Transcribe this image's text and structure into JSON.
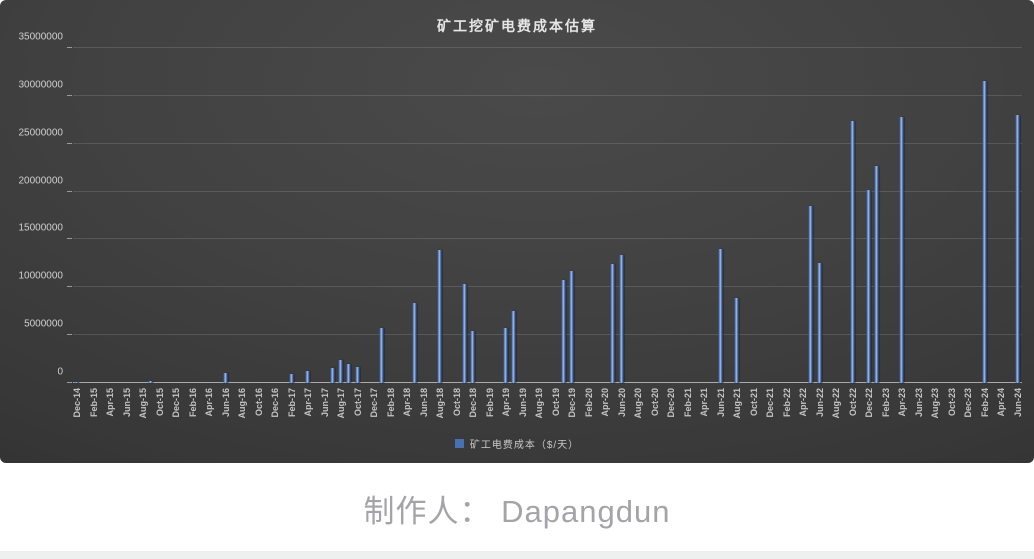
{
  "chart": {
    "title": "矿工挖矿电费成本估算",
    "legend_label": "矿工电费成本（$/天）",
    "accent_color": "#4a70b4",
    "panel_background": "#3d3d3d"
  },
  "footer": {
    "credit": "制作人： Dapangdun"
  },
  "chart_data": {
    "type": "bar",
    "title": "矿工挖矿电费成本估算",
    "legend": [
      "矿工电费成本（$/天）"
    ],
    "legend_position": "bottom",
    "grid": true,
    "ylim": [
      0,
      35000000
    ],
    "y_ticks": [
      0,
      5000000,
      10000000,
      15000000,
      20000000,
      25000000,
      30000000,
      35000000
    ],
    "y_tick_labels": [
      "0",
      "5000000",
      "10000000",
      "15000000",
      "20000000",
      "25000000",
      "30000000",
      "35000000"
    ],
    "x_tick_labels": [
      "Dec-14",
      "Feb-15",
      "Apr-15",
      "Jun-15",
      "Aug-15",
      "Oct-15",
      "Dec-15",
      "Feb-16",
      "Apr-16",
      "Jun-16",
      "Aug-16",
      "Oct-16",
      "Dec-16",
      "Feb-17",
      "Apr-17",
      "Jun-17",
      "Aug-17",
      "Oct-17",
      "Dec-17",
      "Feb-18",
      "Apr-18",
      "Jun-18",
      "Aug-18",
      "Oct-18",
      "Dec-18",
      "Feb-19",
      "Apr-19",
      "Jun-19",
      "Aug-19",
      "Oct-19",
      "Dec-19",
      "Feb-20",
      "Apr-20",
      "Jun-20",
      "Aug-20",
      "Oct-20",
      "Dec-20",
      "Feb-21",
      "Apr-21",
      "Jun-21",
      "Aug-21",
      "Oct-21",
      "Dec-21",
      "Feb-22",
      "Apr-22",
      "Jun-22",
      "Aug-22",
      "Oct-22",
      "Dec-22",
      "Feb-23",
      "Apr-23",
      "Jun-23",
      "Aug-23",
      "Oct-23",
      "Dec-23",
      "Feb-24",
      "Apr-24",
      "Jun-24"
    ],
    "x": [
      "Dec-14",
      "Jan-15",
      "Feb-15",
      "Mar-15",
      "Apr-15",
      "May-15",
      "Jun-15",
      "Jul-15",
      "Aug-15",
      "Sep-15",
      "Oct-15",
      "Nov-15",
      "Dec-15",
      "Jan-16",
      "Feb-16",
      "Mar-16",
      "Apr-16",
      "May-16",
      "Jun-16",
      "Jul-16",
      "Aug-16",
      "Sep-16",
      "Oct-16",
      "Nov-16",
      "Dec-16",
      "Jan-17",
      "Feb-17",
      "Mar-17",
      "Apr-17",
      "May-17",
      "Jun-17",
      "Jul-17",
      "Aug-17",
      "Sep-17",
      "Oct-17",
      "Nov-17",
      "Dec-17",
      "Jan-18",
      "Feb-18",
      "Mar-18",
      "Apr-18",
      "May-18",
      "Jun-18",
      "Jul-18",
      "Aug-18",
      "Sep-18",
      "Oct-18",
      "Nov-18",
      "Dec-18",
      "Jan-19",
      "Feb-19",
      "Mar-19",
      "Apr-19",
      "May-19",
      "Jun-19",
      "Jul-19",
      "Aug-19",
      "Sep-19",
      "Oct-19",
      "Nov-19",
      "Dec-19",
      "Jan-20",
      "Feb-20",
      "Mar-20",
      "Apr-20",
      "May-20",
      "Jun-20",
      "Jul-20",
      "Aug-20",
      "Sep-20",
      "Oct-20",
      "Nov-20",
      "Dec-20",
      "Jan-21",
      "Feb-21",
      "Mar-21",
      "Apr-21",
      "May-21",
      "Jun-21",
      "Jul-21",
      "Aug-21",
      "Sep-21",
      "Oct-21",
      "Nov-21",
      "Dec-21",
      "Jan-22",
      "Feb-22",
      "Mar-22",
      "Apr-22",
      "May-22",
      "Jun-22",
      "Jul-22",
      "Aug-22",
      "Sep-22",
      "Oct-22",
      "Nov-22",
      "Dec-22",
      "Jan-23",
      "Feb-23",
      "Mar-23",
      "Apr-23",
      "May-23",
      "Jun-23",
      "Jul-23",
      "Aug-23",
      "Sep-23",
      "Oct-23",
      "Nov-23",
      "Dec-23",
      "Jan-24",
      "Feb-24",
      "Mar-24",
      "Apr-24",
      "May-24",
      "Jun-24"
    ],
    "values": [
      150000,
      0,
      0,
      0,
      0,
      0,
      0,
      0,
      0,
      200000,
      0,
      0,
      0,
      0,
      0,
      0,
      0,
      0,
      1050000,
      0,
      0,
      0,
      0,
      0,
      0,
      0,
      950000,
      0,
      1300000,
      0,
      0,
      1550000,
      2400000,
      1950000,
      1700000,
      0,
      0,
      5800000,
      0,
      0,
      0,
      8400000,
      0,
      0,
      13900000,
      0,
      0,
      10300000,
      5400000,
      0,
      0,
      0,
      5800000,
      7500000,
      0,
      0,
      0,
      0,
      0,
      10800000,
      11700000,
      0,
      0,
      0,
      0,
      12400000,
      13400000,
      0,
      0,
      0,
      0,
      0,
      0,
      0,
      0,
      0,
      0,
      0,
      14000000,
      0,
      8900000,
      0,
      0,
      0,
      0,
      0,
      0,
      0,
      0,
      18500000,
      12500000,
      0,
      0,
      0,
      27400000,
      0,
      20200000,
      22700000,
      0,
      0,
      27800000,
      0,
      0,
      0,
      0,
      0,
      0,
      0,
      0,
      0,
      31600000,
      0,
      0,
      0,
      28000000
    ]
  }
}
